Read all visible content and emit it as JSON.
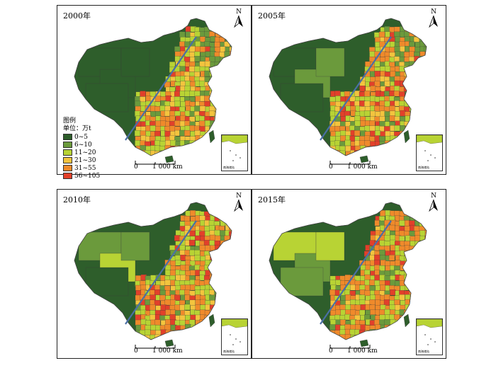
{
  "panels": [
    {
      "year_label": "2000年",
      "variant": 0
    },
    {
      "year_label": "2005年",
      "variant": 1
    },
    {
      "year_label": "2010年",
      "variant": 2
    },
    {
      "year_label": "2015年",
      "variant": 3
    }
  ],
  "north_label": "N",
  "scale_zero": "0",
  "scale_label": "1 000 km",
  "inset_label": "南海诸岛",
  "legend": {
    "title": "图例",
    "unit": "单位：万t",
    "classes": [
      {
        "label": "0~5",
        "color": "#2e5e2b"
      },
      {
        "label": "6~10",
        "color": "#6b9a3c"
      },
      {
        "label": "11~20",
        "color": "#b8d334"
      },
      {
        "label": "21~30",
        "color": "#f3c43e"
      },
      {
        "label": "31~55",
        "color": "#ef8a2b"
      },
      {
        "label": "56~105",
        "color": "#e2402a"
      }
    ]
  },
  "colors": {
    "ocean_line": "#4a6fa5",
    "outline": "#444444"
  }
}
